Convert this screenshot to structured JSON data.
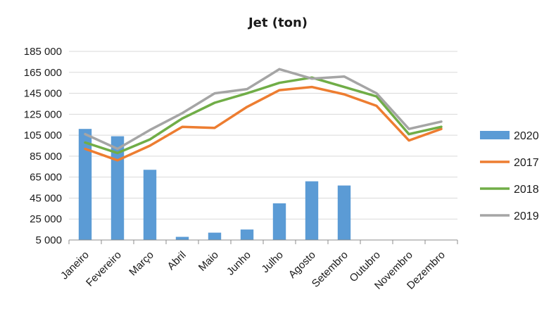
{
  "chart_data": {
    "type": "bar+line",
    "title": "Jet (ton)",
    "categories": [
      "Janeiro",
      "Fevereiro",
      "Março",
      "Abril",
      "Maio",
      "Junho",
      "Julho",
      "Agosto",
      "Setembro",
      "Outubro",
      "Novembro",
      "Dezembro"
    ],
    "ylim": [
      5000,
      185000
    ],
    "yticks": [
      5000,
      25000,
      45000,
      65000,
      85000,
      105000,
      125000,
      145000,
      165000,
      185000
    ],
    "ytick_labels": [
      "5 000",
      "25 000",
      "45 000",
      "65 000",
      "85 000",
      "105 000",
      "125 000",
      "145 000",
      "165 000",
      "185 000"
    ],
    "grid": true,
    "legend_position": "right",
    "series": [
      {
        "name": "2020",
        "kind": "bar",
        "color": "#5B9BD5",
        "values": [
          111000,
          104000,
          72000,
          8000,
          12000,
          15000,
          40000,
          61000,
          57000,
          null,
          null,
          null
        ]
      },
      {
        "name": "2017",
        "kind": "line",
        "color": "#ED7D31",
        "values": [
          92000,
          81000,
          95000,
          113000,
          112000,
          132000,
          148000,
          151000,
          144000,
          133000,
          100000,
          111000
        ]
      },
      {
        "name": "2018",
        "kind": "line",
        "color": "#70AD47",
        "values": [
          98000,
          88000,
          101000,
          121000,
          136000,
          145000,
          155000,
          160000,
          151000,
          142000,
          106000,
          113000
        ]
      },
      {
        "name": "2019",
        "kind": "line",
        "color": "#A5A5A5",
        "values": [
          106000,
          92000,
          110000,
          126000,
          145000,
          149000,
          168000,
          159000,
          161000,
          145000,
          111000,
          118000
        ]
      }
    ]
  }
}
